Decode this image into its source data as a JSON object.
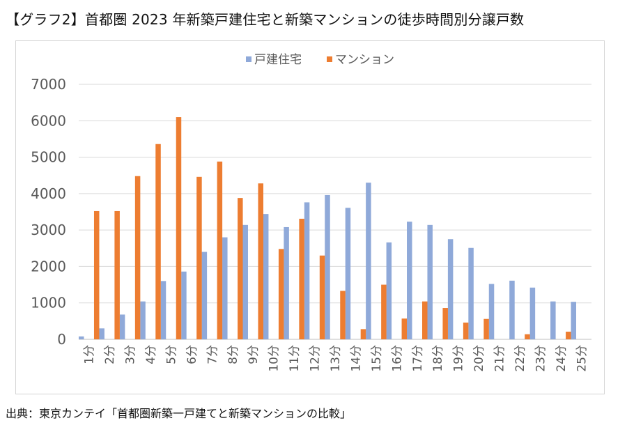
{
  "title": "【グラフ2】首都圏 2023 年新築戸建住宅と新築マンションの徒歩時間別分譲戸数",
  "source": "出典：東京カンテイ「首都圏新築一戸建てと新築マンションの比較」",
  "chart_data": {
    "type": "bar",
    "title": "【グラフ2】首都圏 2023 年新築戸建住宅と新築マンションの徒歩時間別分譲戸数",
    "xlabel": "",
    "ylabel": "",
    "ylim": [
      0,
      7000
    ],
    "yticks": [
      0,
      1000,
      2000,
      3000,
      4000,
      5000,
      6000,
      7000
    ],
    "grid": true,
    "legend_position": "top-center",
    "categories": [
      "1分",
      "2分",
      "3分",
      "4分",
      "5分",
      "6分",
      "7分",
      "8分",
      "9分",
      "10分",
      "11分",
      "12分",
      "13分",
      "14分",
      "15分",
      "16分",
      "17分",
      "18分",
      "19分",
      "20分",
      "21分",
      "22分",
      "23分",
      "24分",
      "25分"
    ],
    "series": [
      {
        "name": "戸建住宅",
        "color": "#8fa9d9",
        "values": [
          80,
          300,
          680,
          1040,
          1600,
          1860,
          2400,
          2800,
          3140,
          3440,
          3080,
          3760,
          3960,
          3610,
          4300,
          2660,
          3230,
          3140,
          2750,
          2510,
          1520,
          1610,
          1420,
          1040,
          1030
        ]
      },
      {
        "name": "マンション",
        "color": "#ed7d31",
        "values": [
          3520,
          3520,
          4480,
          5360,
          6100,
          4460,
          4880,
          3880,
          4280,
          2480,
          3310,
          2300,
          1330,
          280,
          1500,
          570,
          1040,
          860,
          460,
          560,
          0,
          140,
          0,
          210,
          0
        ]
      }
    ]
  }
}
